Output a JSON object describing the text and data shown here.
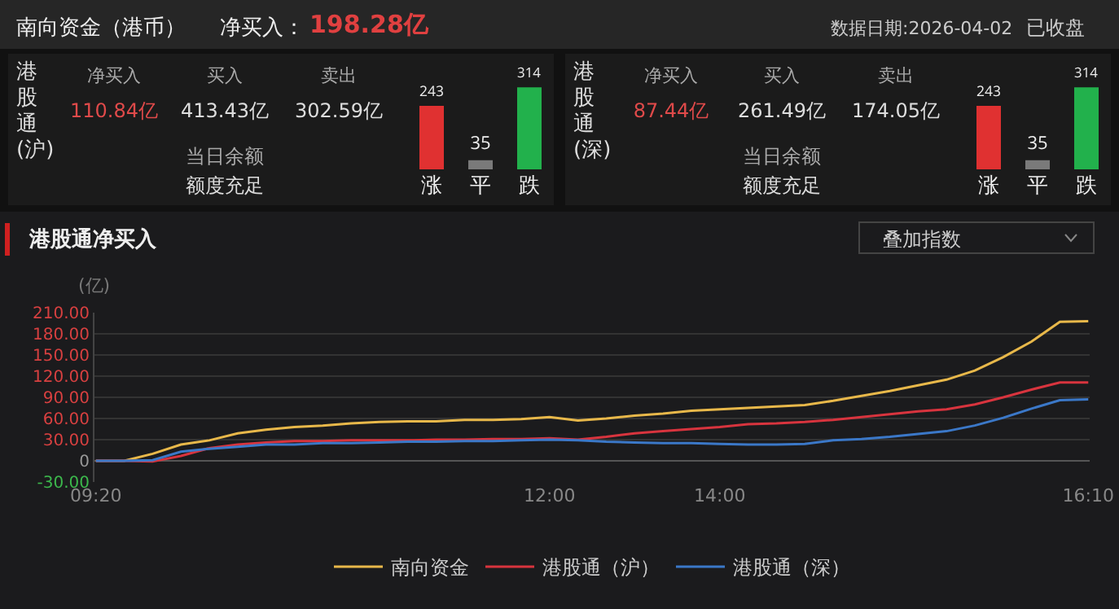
{
  "chart_data": [
    {
      "type": "other",
      "title": "南向资金（港币）",
      "annotations": [
        "净买入：",
        "198.28亿",
        "数据日期:2026-04-02",
        "已收盘"
      ]
    },
    {
      "type": "other",
      "title": "港股通(沪)",
      "annotations": [
        "净买入",
        "买入",
        "卖出",
        "110.84亿",
        "413.43亿",
        "302.59亿",
        "当日余额",
        "额度充足"
      ]
    },
    {
      "type": "bar",
      "categories": [
        "涨",
        "平",
        "跌"
      ],
      "values": [
        243,
        35,
        314
      ],
      "colors": [
        "#e03131",
        "#7a7a7a",
        "#22b14c"
      ],
      "data_labels": true
    },
    {
      "type": "other",
      "title": "港股通(深)",
      "annotations": [
        "净买入",
        "买入",
        "卖出",
        "87.44亿",
        "261.49亿",
        "174.05亿",
        "当日余额",
        "额度充足"
      ]
    },
    {
      "type": "bar",
      "categories": [
        "涨",
        "平",
        "跌"
      ],
      "values": [
        243,
        35,
        314
      ],
      "colors": [
        "#e03131",
        "#7a7a7a",
        "#22b14c"
      ],
      "data_labels": true
    },
    {
      "type": "line",
      "title": "港股通净买入",
      "ylabel": "(亿)",
      "annotations": [
        "叠加指数"
      ],
      "categories": [
        "09:20",
        null,
        null,
        null,
        null,
        null,
        null,
        null,
        null,
        null,
        null,
        null,
        null,
        null,
        null,
        null,
        "12:00",
        null,
        null,
        null,
        null,
        null,
        "14:00",
        null,
        null,
        null,
        null,
        null,
        null,
        null,
        null,
        null,
        null,
        null,
        null,
        "16:10"
      ],
      "series": [
        {
          "name": "南向资金",
          "color": "#e8b84a",
          "values": [
            0,
            0,
            10,
            23,
            29,
            39,
            44,
            48,
            50,
            53,
            55,
            56,
            56,
            58,
            58,
            59,
            62,
            57,
            60,
            64,
            67,
            71,
            73,
            75,
            77,
            79,
            85,
            92,
            99,
            107,
            115,
            128,
            147,
            169,
            197,
            198
          ]
        },
        {
          "name": "港股通（沪）",
          "color": "#d8343e",
          "values": [
            0,
            0,
            -1,
            7,
            18,
            23,
            26,
            28,
            28,
            29,
            29,
            29,
            30,
            30,
            31,
            31,
            32,
            30,
            34,
            39,
            42,
            45,
            48,
            52,
            53,
            55,
            58,
            62,
            66,
            70,
            73,
            80,
            90,
            101,
            111,
            111
          ]
        },
        {
          "name": "港股通（深）",
          "color": "#3b78c8",
          "values": [
            0,
            0,
            1,
            13,
            17,
            20,
            23,
            23,
            25,
            25,
            26,
            27,
            27,
            28,
            28,
            29,
            30,
            29,
            27,
            26,
            25,
            25,
            24,
            23,
            23,
            24,
            29,
            31,
            34,
            38,
            42,
            50,
            61,
            74,
            86,
            87
          ]
        }
      ],
      "ylim": [
        -30,
        210
      ],
      "yticks": [
        {
          "value": -30,
          "label": "-30.00"
        },
        0,
        {
          "value": 30,
          "label": "30.00"
        },
        {
          "value": 60,
          "label": "60.00"
        },
        {
          "value": 90,
          "label": "90.00"
        },
        {
          "value": 120,
          "label": "120.00"
        },
        {
          "value": 150,
          "label": "150.00"
        },
        {
          "value": 180,
          "label": "180.00"
        },
        {
          "value": 210,
          "label": "210.00"
        }
      ],
      "grid": "y",
      "legend": "bottom"
    }
  ]
}
